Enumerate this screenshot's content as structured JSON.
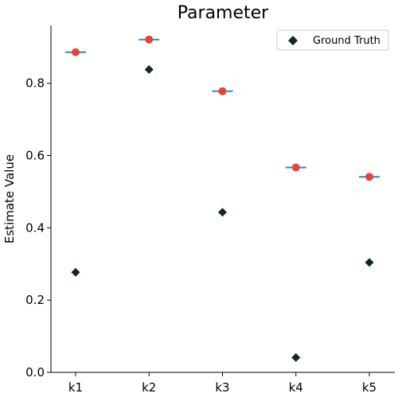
{
  "chart_data": {
    "type": "scatter",
    "title": "Parameter",
    "xlabel": "",
    "ylabel": "Estimate Value",
    "categories": [
      "k1",
      "k2",
      "k3",
      "k4",
      "k5"
    ],
    "ylim": [
      0.0,
      0.96
    ],
    "yticks": [
      0.0,
      0.2,
      0.4,
      0.6,
      0.8
    ],
    "ytick_labels": [
      "0.0",
      "0.2",
      "0.4",
      "0.6",
      "0.8"
    ],
    "grid": false,
    "legend_position": "top-right",
    "series": [
      {
        "name": "",
        "marker": "circle-with-errorbar",
        "color": "#e8423a",
        "errorbar_color": "#2e86c1",
        "values": [
          0.886,
          0.921,
          0.778,
          0.567,
          0.541
        ]
      },
      {
        "name": "Ground Truth",
        "marker": "diamond",
        "color": "#0d2b22",
        "values": [
          0.277,
          0.838,
          0.443,
          0.041,
          0.304
        ]
      }
    ]
  }
}
